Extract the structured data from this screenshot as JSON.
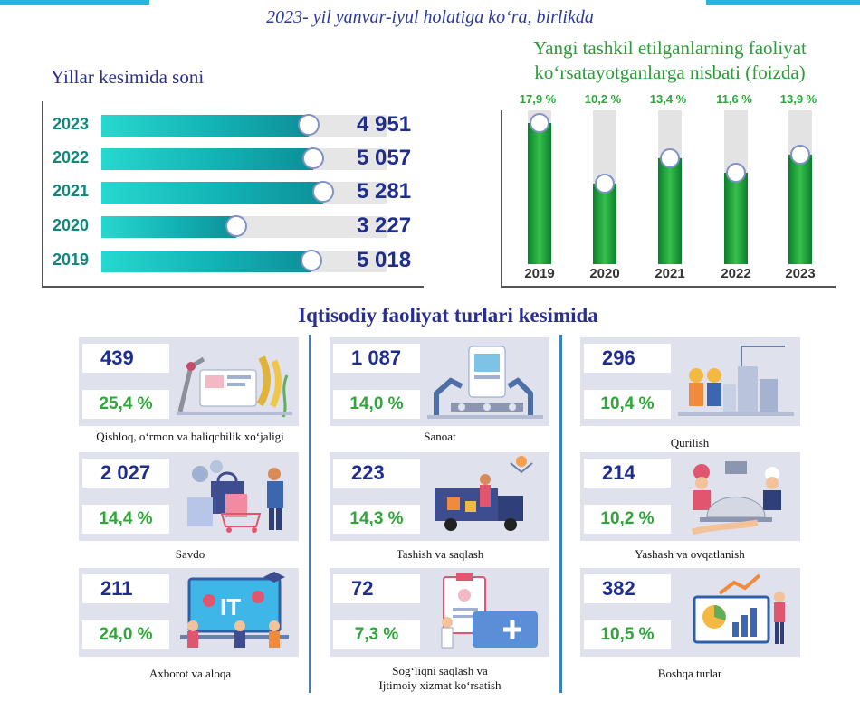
{
  "subtitle": "2023- yil yanvar-iyul holatiga ko‘ra, birlikda",
  "years_panel": {
    "title": "Yillar kesimida soni",
    "rows": [
      {
        "year": "2023",
        "value_label": "4 951"
      },
      {
        "year": "2022",
        "value_label": "5 057"
      },
      {
        "year": "2021",
        "value_label": "5 281"
      },
      {
        "year": "2020",
        "value_label": "3 227"
      },
      {
        "year": "2019",
        "value_label": "5 018"
      }
    ]
  },
  "ratio_panel": {
    "title_line1": "Yangi tashkil etilganlarning faoliyat",
    "title_line2": "ko‘rsatayotganlarga nisbati (foizda)",
    "columns": [
      {
        "year": "2019",
        "pct_label": "17,9 %"
      },
      {
        "year": "2020",
        "pct_label": "10,2 %"
      },
      {
        "year": "2021",
        "pct_label": "13,4 %"
      },
      {
        "year": "2022",
        "pct_label": "11,6 %"
      },
      {
        "year": "2023",
        "pct_label": "13,9 %"
      }
    ]
  },
  "sector_section": {
    "title": "Iqtisodiy faoliyat turlari kesimida",
    "cards": [
      {
        "count": "439",
        "pct": "25,4 %",
        "label": "Qishloq, o‘rmon va baliqchilik xo‘jaligi",
        "icon": "agriculture-illustration"
      },
      {
        "count": "1 087",
        "pct": "14,0 %",
        "label": "Sanoat",
        "icon": "industry-illustration"
      },
      {
        "count": "296",
        "pct": "10,4 %",
        "label": "Qurilish",
        "icon": "construction-illustration"
      },
      {
        "count": "2 027",
        "pct": "14,4 %",
        "label": "Savdo",
        "icon": "shopping-illustration"
      },
      {
        "count": "223",
        "pct": "14,3 %",
        "label": "Tashish va saqlash",
        "icon": "transport-illustration"
      },
      {
        "count": "214",
        "pct": "10,2 %",
        "label": "Yashash va ovqatlanish",
        "icon": "hospitality-illustration"
      },
      {
        "count": "211",
        "pct": "24,0 %",
        "label": "Axborot va aloqa",
        "icon": "it-illustration"
      },
      {
        "count": "72",
        "pct": "7,3 %",
        "label_line1": "Sog‘liqni saqlash va",
        "label_line2": "Ijtimoiy xizmat ko‘rsatish",
        "icon": "healthcare-illustration"
      },
      {
        "count": "382",
        "pct": "10,5 %",
        "label": "Boshqa turlar",
        "icon": "other-sectors-illustration"
      }
    ]
  },
  "chart_data": [
    {
      "type": "bar",
      "title": "Yillar kesimida soni",
      "orientation": "horizontal",
      "categories": [
        "2023",
        "2022",
        "2021",
        "2020",
        "2019"
      ],
      "values": [
        4951,
        5057,
        5281,
        3227,
        5018
      ],
      "xlim": [
        0,
        6800
      ]
    },
    {
      "type": "bar",
      "title": "Yangi tashkil etilganlarning faoliyat ko‘rsatayotganlarga nisbati (foizda)",
      "categories": [
        "2019",
        "2020",
        "2021",
        "2022",
        "2023"
      ],
      "values": [
        17.9,
        10.2,
        13.4,
        11.6,
        13.9
      ],
      "ylim": [
        0,
        19.5
      ]
    },
    {
      "type": "table",
      "title": "Iqtisodiy faoliyat turlari kesimida",
      "categories": [
        "Qishloq, o‘rmon va baliqchilik xo‘jaligi",
        "Sanoat",
        "Qurilish",
        "Savdo",
        "Tashish va saqlash",
        "Yashash va ovqatlanish",
        "Axborot va aloqa",
        "Sog‘liqni saqlash va Ijtimoiy xizmat ko‘rsatish",
        "Boshqa turlar"
      ],
      "values": [
        439,
        1087,
        296,
        2027,
        223,
        214,
        211,
        72,
        382
      ],
      "percent": [
        25.4,
        14.0,
        10.4,
        14.4,
        14.3,
        10.2,
        24.0,
        7.3,
        10.5
      ]
    }
  ]
}
